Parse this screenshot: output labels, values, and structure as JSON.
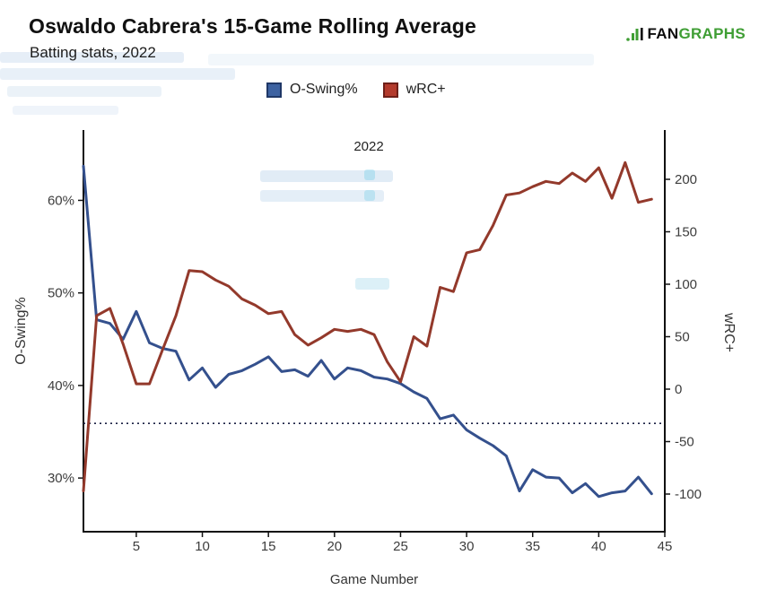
{
  "header": {
    "title": "Oswaldo Cabrera's 15-Game Rolling Average",
    "subtitle": "Batting stats, 2022",
    "brand": {
      "prefix": "FAN",
      "suffix": "GRAPHS"
    }
  },
  "colors": {
    "axis": "#111111",
    "tick_text": "#3d3d3d",
    "brand_green": "#3f9e34",
    "oswing_line": "#34508d",
    "wrc_line": "#93392b",
    "legend_swatch_blue": "#3d62a1",
    "legend_swatch_blue_border": "#1f3766",
    "legend_swatch_red": "#b33a2c",
    "legend_swatch_red_border": "#6e1f18",
    "reference_line": "#1b2144"
  },
  "chart_data": {
    "type": "line",
    "title": "Oswaldo Cabrera's 15-Game Rolling Average",
    "subtitle": "Batting stats, 2022",
    "year_annotation": "2022",
    "xlabel": "Game Number",
    "grid": false,
    "legend_position": "top-center",
    "xlim": [
      1,
      45
    ],
    "x_tick_values": [
      5,
      10,
      15,
      20,
      25,
      30,
      35,
      40,
      45
    ],
    "x_tick_labels": [
      "5",
      "10",
      "15",
      "20",
      "25",
      "30",
      "35",
      "40",
      "45"
    ],
    "left_axis": {
      "label": "O-Swing%",
      "tick_values": [
        30,
        40,
        50,
        60
      ],
      "tick_labels": [
        "30%",
        "40%",
        "50%",
        "60%"
      ],
      "lim": [
        24.2,
        67.6
      ]
    },
    "right_axis": {
      "label": "wRC+",
      "tick_values": [
        -100,
        -50,
        0,
        50,
        100,
        150,
        200
      ],
      "tick_labels": [
        "-100",
        "-50",
        "0",
        "50",
        "100",
        "150",
        "200"
      ],
      "lim": [
        -135.9,
        247.0
      ]
    },
    "x": [
      1,
      2,
      3,
      4,
      5,
      6,
      7,
      8,
      9,
      10,
      11,
      12,
      13,
      14,
      15,
      16,
      17,
      18,
      19,
      20,
      21,
      22,
      23,
      24,
      25,
      26,
      27,
      28,
      29,
      30,
      31,
      32,
      33,
      34,
      35,
      36,
      37,
      38,
      39,
      40,
      41,
      42,
      43,
      44
    ],
    "series": [
      {
        "name": "O-Swing%",
        "axis": "left",
        "color": "#34508d",
        "values": [
          63.7,
          47.1,
          46.7,
          45.0,
          48.0,
          44.6,
          44.0,
          43.7,
          40.6,
          41.9,
          39.8,
          41.2,
          41.6,
          42.3,
          43.1,
          41.5,
          41.7,
          41.0,
          42.7,
          40.7,
          41.9,
          41.6,
          40.9,
          40.7,
          40.2,
          39.3,
          38.6,
          36.4,
          36.8,
          35.2,
          34.3,
          33.5,
          32.4,
          28.6,
          30.9,
          30.1,
          30.0,
          28.4,
          29.4,
          28.0,
          28.4,
          28.6,
          30.1,
          28.3
        ]
      },
      {
        "name": "wRC+",
        "axis": "right",
        "color": "#93392b",
        "values": [
          -97,
          70,
          77,
          43,
          5,
          5,
          38,
          70,
          113,
          112,
          104,
          98,
          86,
          80,
          72,
          74,
          52,
          42,
          49,
          57,
          55,
          57,
          52,
          26,
          7,
          50,
          41,
          97,
          93,
          130,
          133,
          156,
          185,
          187,
          193,
          198,
          196,
          206,
          198,
          211,
          182,
          216,
          178,
          181
        ]
      }
    ],
    "reference_line": {
      "axis": "left",
      "value": 35.9,
      "style": "dotted",
      "color": "#1b2144"
    }
  }
}
